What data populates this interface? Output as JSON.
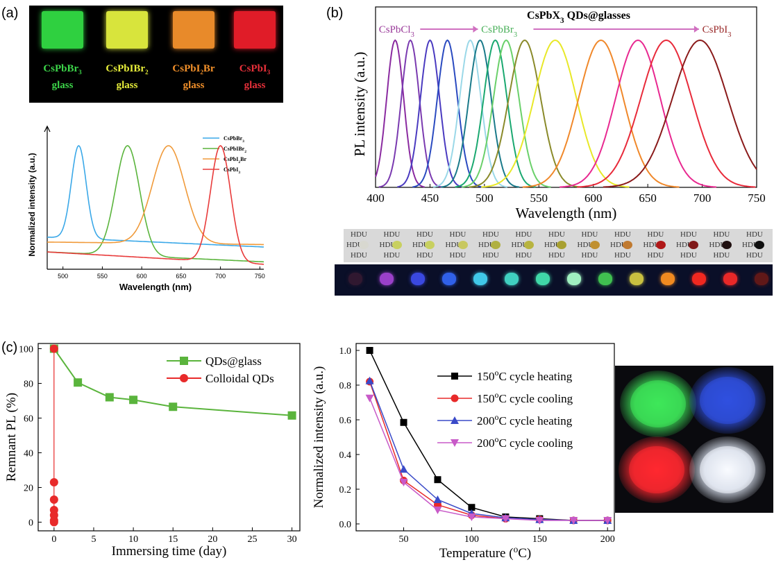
{
  "panels": {
    "a": "(a)",
    "b": "(b)",
    "c": "(c)"
  },
  "glasses": [
    {
      "formula": "CsPbBr",
      "sub": "3",
      "word": "glass",
      "color": "#3dd64a",
      "glow": "#2fd040"
    },
    {
      "formula": "CsPbIBr",
      "sub": "2",
      "word": "glass",
      "color": "#e7ee3a",
      "glow": "#d8e43c"
    },
    {
      "formula": "CsPbI",
      "sub": "2",
      "tail": "Br",
      "word": "glass",
      "color": "#f2902a",
      "glow": "#e88a2a"
    },
    {
      "formula": "CsPbI",
      "sub": "3",
      "word": "glass",
      "color": "#e8303a",
      "glow": "#e01c28"
    }
  ],
  "hdu_label": "HDU",
  "led_colors": [
    "#3ee85a",
    "#3050e0",
    "#ff2830",
    "#e8f0ff"
  ],
  "chart_data": [
    {
      "type": "line",
      "xlabel": "Wavelength (nm)",
      "ylabel": "Normalized intensity (a.u.)",
      "xlim": [
        480,
        755
      ],
      "xticks": [
        500,
        550,
        600,
        650,
        700,
        750
      ],
      "series": [
        {
          "name": "CsPbBr",
          "sub": "3",
          "peak": 520,
          "fwhm": 22,
          "color": "#3aa8e8"
        },
        {
          "name": "CsPbIBr",
          "sub": "2",
          "peak": 582,
          "fwhm": 36,
          "color": "#5ab43c"
        },
        {
          "name": "CsPbI",
          "sub": "2",
          "tail": "Br",
          "peak": 634,
          "fwhm": 48,
          "color": "#f09a3a"
        },
        {
          "name": "CsPbI",
          "sub": "3",
          "peak": 700,
          "fwhm": 30,
          "color": "#e83a3a"
        }
      ]
    },
    {
      "type": "line",
      "title": "CsPbX",
      "title_sub": "3",
      "title_tail": " QDs@glasses",
      "xlabel": "Wavelength (nm)",
      "ylabel": "PL  intensity (a.u.)",
      "xlim": [
        400,
        750
      ],
      "xticks": [
        400,
        450,
        500,
        550,
        600,
        650,
        700,
        750
      ],
      "annotations": [
        {
          "text": "CsPbCl",
          "sub": "3",
          "color": "#9a3a9a"
        },
        {
          "text": "CsPbBr",
          "sub": "3",
          "color": "#4ab05a"
        },
        {
          "text": "CsPbI",
          "sub": "3",
          "color": "#9a2a2a"
        }
      ],
      "series": [
        {
          "peak": 418,
          "fwhm": 16,
          "color": "#8a2aa0"
        },
        {
          "peak": 432,
          "fwhm": 17,
          "color": "#7a3ab0"
        },
        {
          "peak": 450,
          "fwhm": 18,
          "color": "#4a3ac0"
        },
        {
          "peak": 466,
          "fwhm": 19,
          "color": "#2a4ac0"
        },
        {
          "peak": 487,
          "fwhm": 20,
          "color": "#9ad8e8"
        },
        {
          "peak": 496,
          "fwhm": 21,
          "color": "#1a7a8a"
        },
        {
          "peak": 510,
          "fwhm": 22,
          "color": "#1aa870"
        },
        {
          "peak": 520,
          "fwhm": 24,
          "color": "#6ad06a"
        },
        {
          "peak": 537,
          "fwhm": 30,
          "color": "#8a8a2a"
        },
        {
          "peak": 565,
          "fwhm": 40,
          "color": "#e8e828"
        },
        {
          "peak": 607,
          "fwhm": 42,
          "color": "#f0882a"
        },
        {
          "peak": 641,
          "fwhm": 42,
          "color": "#e82890"
        },
        {
          "peak": 667,
          "fwhm": 48,
          "color": "#e82a3a"
        },
        {
          "peak": 698,
          "fwhm": 52,
          "color": "#8a1a1a"
        }
      ]
    },
    {
      "type": "line",
      "xlabel": "Immersing time (day)",
      "ylabel": "Remnant PL (%)",
      "xlim": [
        -2,
        31
      ],
      "ylim": [
        -5,
        103
      ],
      "xticks": [
        0,
        5,
        10,
        15,
        20,
        25,
        30
      ],
      "yticks": [
        0,
        20,
        40,
        60,
        80,
        100
      ],
      "series": [
        {
          "name": "QDs@glass",
          "color": "#5ab43c",
          "marker": "square",
          "x": [
            0,
            3,
            7,
            10,
            15,
            30
          ],
          "y": [
            100,
            80.5,
            72,
            70.5,
            66.5,
            61.5
          ]
        },
        {
          "name": "Colloidal QDs",
          "color": "#e82a2a",
          "marker": "circle",
          "x": [
            0,
            0,
            0,
            0,
            0,
            0,
            0
          ],
          "y": [
            100,
            23,
            13,
            7,
            4,
            1,
            0
          ]
        }
      ]
    },
    {
      "type": "line",
      "xlabel": "Temperature (",
      "xlabel_sup": "o",
      "xlabel_tail": "C)",
      "ylabel": "Normalized intensity (a.u.)",
      "xlim": [
        15,
        205
      ],
      "ylim": [
        -0.04,
        1.04
      ],
      "xticks": [
        50,
        100,
        150,
        200
      ],
      "yticks": [
        0.0,
        0.2,
        0.4,
        0.6,
        0.8,
        1.0
      ],
      "ytick_labels": [
        "0.0",
        "0.2",
        "0.4",
        "0.6",
        "0.8",
        "1.0"
      ],
      "x": [
        25,
        50,
        75,
        100,
        125,
        150,
        175,
        200
      ],
      "series": [
        {
          "name": "150",
          "name_tail": "C cycle heating",
          "color": "#000000",
          "marker": "square",
          "values": [
            1.0,
            0.585,
            0.255,
            0.095,
            0.04,
            0.03,
            0.02,
            0.02
          ]
        },
        {
          "name": "150",
          "name_tail": "C cycle cooling",
          "color": "#e82a2a",
          "marker": "circle",
          "values": [
            0.82,
            0.25,
            0.11,
            0.05,
            0.03,
            0.025,
            0.02,
            0.02
          ]
        },
        {
          "name": "200",
          "name_tail": "C cycle heating",
          "color": "#3a4ac8",
          "marker": "triangle",
          "values": [
            0.825,
            0.315,
            0.14,
            0.06,
            0.035,
            0.025,
            0.02,
            0.02
          ]
        },
        {
          "name": "200",
          "name_tail": "C cycle cooling",
          "color": "#c85ac8",
          "marker": "triangle-down",
          "values": [
            0.725,
            0.24,
            0.08,
            0.04,
            0.03,
            0.02,
            0.02,
            0.02
          ]
        }
      ]
    }
  ]
}
